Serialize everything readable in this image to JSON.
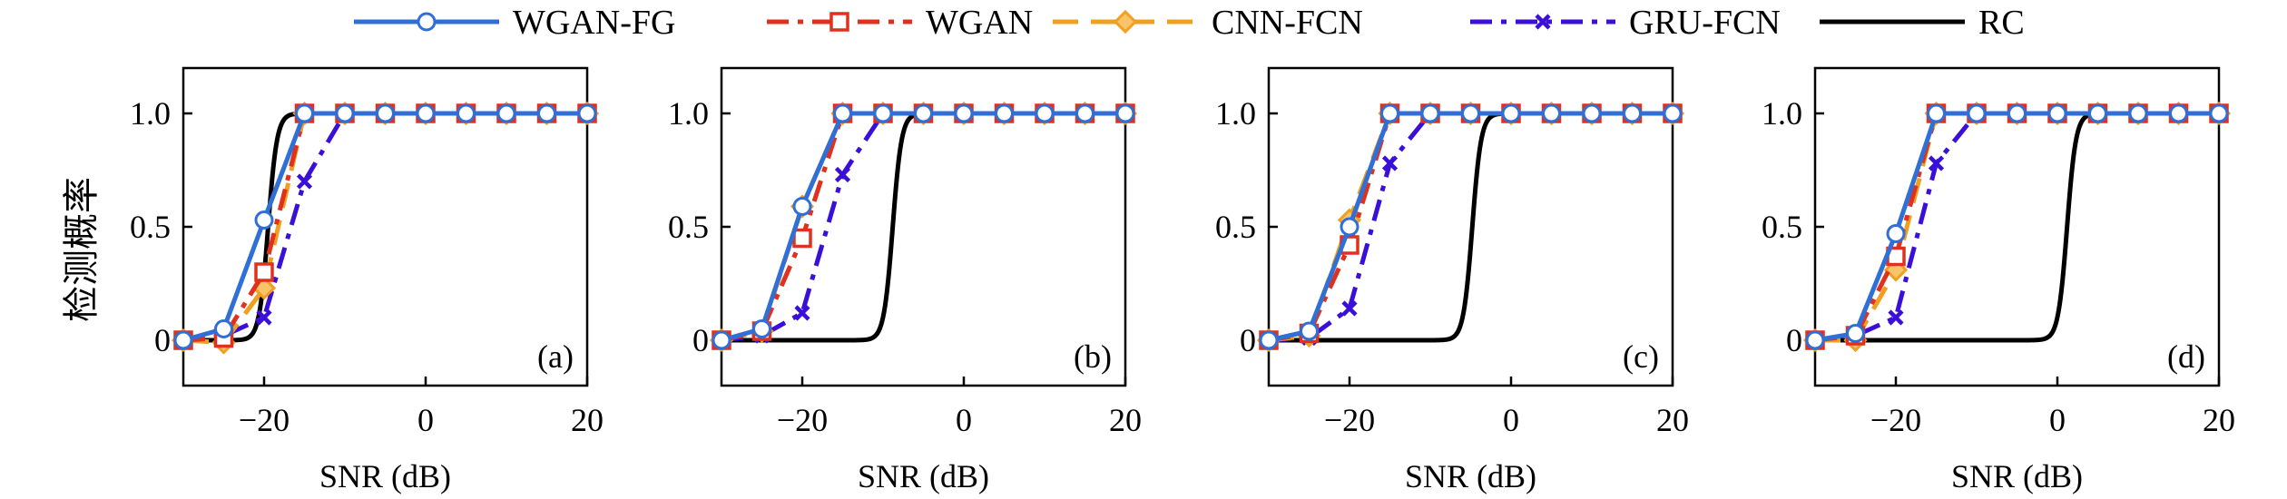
{
  "legend": [
    {
      "name": "WGAN-FG",
      "color": "#2f6fd6",
      "marker": "circle",
      "dash": "solid"
    },
    {
      "name": "WGAN",
      "color": "#e0301e",
      "marker": "square",
      "dash": "dashdot"
    },
    {
      "name": "CNN-FCN",
      "color": "#f0a020",
      "marker": "diamond",
      "dash": "dashed"
    },
    {
      "name": "GRU-FCN",
      "color": "#3a10d8",
      "marker": "x",
      "dash": "dashdot"
    },
    {
      "name": "RC",
      "color": "#000000",
      "marker": "none",
      "dash": "solid"
    }
  ],
  "ylabel": "检测概率",
  "xlabel": "SNR (dB)",
  "chart_data": [
    {
      "type": "line",
      "label": "(a)",
      "xlabel": "SNR (dB)",
      "ylabel": "检测概率",
      "xlim": [
        -30,
        20
      ],
      "ylim": [
        -0.2,
        1.2
      ],
      "xticks": [
        -20,
        0,
        20
      ],
      "yticks": [
        0,
        0.5,
        1.0
      ],
      "x": [
        -30,
        -25,
        -20,
        -15,
        -10,
        -5,
        0,
        5,
        10,
        15,
        20
      ],
      "series": [
        {
          "name": "WGAN-FG",
          "values": [
            0,
            0.05,
            0.53,
            1,
            1,
            1,
            1,
            1,
            1,
            1,
            1
          ]
        },
        {
          "name": "WGAN",
          "values": [
            0,
            0.01,
            0.3,
            1,
            1,
            1,
            1,
            1,
            1,
            1,
            1
          ]
        },
        {
          "name": "CNN-FCN",
          "values": [
            0,
            -0.01,
            0.23,
            1,
            1,
            1,
            1,
            1,
            1,
            1,
            1
          ]
        },
        {
          "name": "GRU-FCN",
          "values": [
            0,
            0.02,
            0.1,
            0.7,
            1,
            1,
            1,
            1,
            1,
            1,
            1
          ]
        },
        {
          "name": "RC",
          "center": -19.5,
          "width": 0.55
        }
      ]
    },
    {
      "type": "line",
      "label": "(b)",
      "xlabel": "SNR (dB)",
      "ylabel": "",
      "xlim": [
        -30,
        20
      ],
      "ylim": [
        -0.2,
        1.2
      ],
      "xticks": [
        -20,
        0,
        20
      ],
      "yticks": [
        0,
        0.5,
        1.0
      ],
      "x": [
        -30,
        -25,
        -20,
        -15,
        -10,
        -5,
        0,
        5,
        10,
        15,
        20
      ],
      "series": [
        {
          "name": "WGAN-FG",
          "values": [
            0,
            0.05,
            0.59,
            1,
            1,
            1,
            1,
            1,
            1,
            1,
            1
          ]
        },
        {
          "name": "WGAN",
          "values": [
            0,
            0.04,
            0.45,
            1,
            1,
            1,
            1,
            1,
            1,
            1,
            1
          ]
        },
        {
          "name": "CNN-FCN",
          "values": [
            0,
            0.04,
            0.59,
            1,
            1,
            1,
            1,
            1,
            1,
            1,
            1
          ]
        },
        {
          "name": "GRU-FCN",
          "values": [
            0,
            0.02,
            0.12,
            0.73,
            1,
            1,
            1,
            1,
            1,
            1,
            1
          ]
        },
        {
          "name": "RC",
          "center": -8.8,
          "width": 0.55
        }
      ]
    },
    {
      "type": "line",
      "label": "(c)",
      "xlabel": "SNR (dB)",
      "ylabel": "",
      "xlim": [
        -30,
        20
      ],
      "ylim": [
        -0.2,
        1.2
      ],
      "xticks": [
        -20,
        0,
        20
      ],
      "yticks": [
        0,
        0.5,
        1.0
      ],
      "x": [
        -30,
        -25,
        -20,
        -15,
        -10,
        -5,
        0,
        5,
        10,
        15,
        20
      ],
      "series": [
        {
          "name": "WGAN-FG",
          "values": [
            0,
            0.04,
            0.5,
            1,
            1,
            1,
            1,
            1,
            1,
            1,
            1
          ]
        },
        {
          "name": "WGAN",
          "values": [
            0,
            0.03,
            0.42,
            1,
            1,
            1,
            1,
            1,
            1,
            1,
            1
          ]
        },
        {
          "name": "CNN-FCN",
          "values": [
            0,
            0.02,
            0.53,
            1,
            1,
            1,
            1,
            1,
            1,
            1,
            1
          ]
        },
        {
          "name": "GRU-FCN",
          "values": [
            0,
            0.01,
            0.14,
            0.78,
            1,
            1,
            1,
            1,
            1,
            1,
            1
          ]
        },
        {
          "name": "RC",
          "center": -4.8,
          "width": 0.55
        }
      ]
    },
    {
      "type": "line",
      "label": "(d)",
      "xlabel": "SNR (dB)",
      "ylabel": "",
      "xlim": [
        -30,
        20
      ],
      "ylim": [
        -0.2,
        1.2
      ],
      "xticks": [
        -20,
        0,
        20
      ],
      "yticks": [
        0,
        0.5,
        1.0
      ],
      "x": [
        -30,
        -25,
        -20,
        -15,
        -10,
        -5,
        0,
        5,
        10,
        15,
        20
      ],
      "series": [
        {
          "name": "WGAN-FG",
          "values": [
            0,
            0.03,
            0.47,
            1,
            1,
            1,
            1,
            1,
            1,
            1,
            1
          ]
        },
        {
          "name": "WGAN",
          "values": [
            0,
            0.02,
            0.37,
            1,
            1,
            1,
            1,
            1,
            1,
            1,
            1
          ]
        },
        {
          "name": "CNN-FCN",
          "values": [
            0,
            0,
            0.31,
            1,
            1,
            1,
            1,
            1,
            1,
            1,
            1
          ]
        },
        {
          "name": "GRU-FCN",
          "values": [
            0,
            0.02,
            0.1,
            0.78,
            1,
            1,
            1,
            1,
            1,
            1,
            1
          ]
        },
        {
          "name": "RC",
          "center": 1.2,
          "width": 0.55
        }
      ]
    }
  ]
}
